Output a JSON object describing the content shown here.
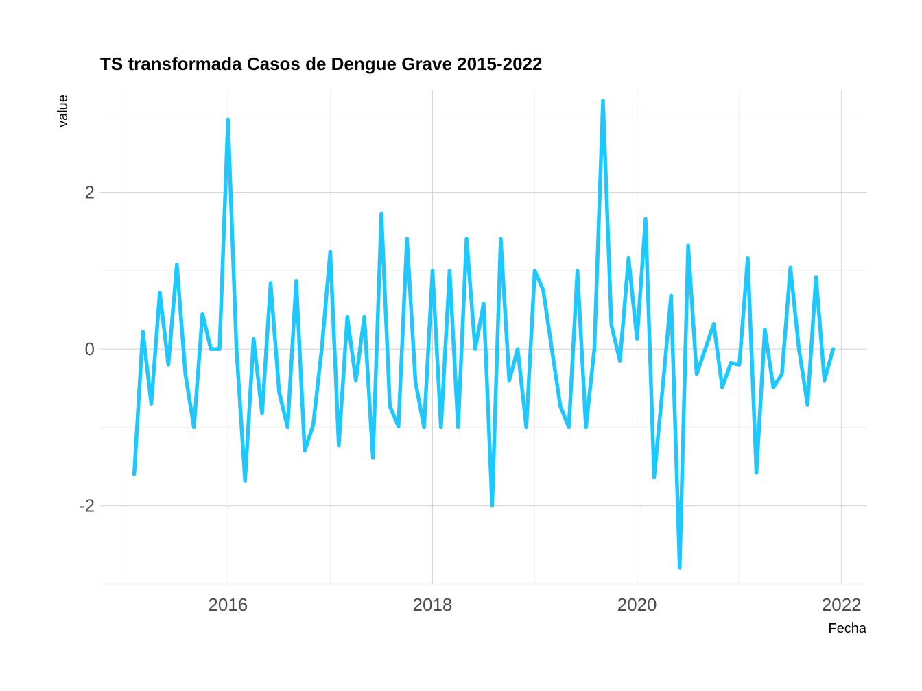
{
  "chart_data": {
    "type": "line",
    "title": "TS transformada Casos de Dengue Grave 2015-2022",
    "xlabel": "Fecha",
    "ylabel": "value",
    "x_ticks": [
      "2016",
      "2018",
      "2020",
      "2022"
    ],
    "y_ticks": [
      "-2",
      "0",
      "2"
    ],
    "xlim": [
      2014.75,
      2022.25
    ],
    "ylim": [
      -3,
      3.3
    ],
    "grid": true,
    "legend": "none",
    "line_color": "#1EC8FF",
    "series": [
      {
        "x": [
          2015.083,
          2015.167,
          2015.25,
          2015.333,
          2015.417,
          2015.5,
          2015.583,
          2015.667,
          2015.75,
          2015.833,
          2015.917,
          2016.0,
          2016.083,
          2016.167,
          2016.25,
          2016.333,
          2016.417,
          2016.5,
          2016.583,
          2016.667,
          2016.75,
          2016.833,
          2016.917,
          2017.0,
          2017.083,
          2017.167,
          2017.25,
          2017.333,
          2017.417,
          2017.5,
          2017.583,
          2017.667,
          2017.75,
          2017.833,
          2017.917,
          2018.0,
          2018.083,
          2018.167,
          2018.25,
          2018.333,
          2018.417,
          2018.5,
          2018.583,
          2018.667,
          2018.75,
          2018.833,
          2018.917,
          2019.0,
          2019.083,
          2019.167,
          2019.25,
          2019.333,
          2019.417,
          2019.5,
          2019.583,
          2019.667,
          2019.75,
          2019.833,
          2019.917,
          2020.0,
          2020.083,
          2020.167,
          2020.25,
          2020.333,
          2020.417,
          2020.5,
          2020.583,
          2020.667,
          2020.75,
          2020.833,
          2020.917,
          2021.0,
          2021.083,
          2021.167,
          2021.25,
          2021.333,
          2021.417,
          2021.5,
          2021.583,
          2021.667,
          2021.75,
          2021.833,
          2021.917
        ],
        "values": [
          -1.6,
          0.22,
          -0.7,
          0.72,
          -0.2,
          1.08,
          -0.32,
          -1.0,
          0.45,
          0.0,
          0.0,
          2.93,
          0.0,
          -1.68,
          0.13,
          -0.82,
          0.84,
          -0.55,
          -1.0,
          0.87,
          -1.3,
          -0.97,
          0.0,
          1.24,
          -1.23,
          0.41,
          -0.4,
          0.41,
          -1.39,
          1.73,
          -0.73,
          -0.99,
          1.41,
          -0.42,
          -1.0,
          1.0,
          -1.0,
          1.0,
          -1.0,
          1.41,
          0.0,
          0.58,
          -2.0,
          1.41,
          -0.4,
          0.0,
          -1.0,
          1.0,
          0.75,
          0.0,
          -0.73,
          -1.0,
          1.0,
          -1.0,
          0.0,
          3.17,
          0.3,
          -0.15,
          1.16,
          0.13,
          1.66,
          -1.64,
          -0.5,
          0.68,
          -2.79,
          1.32,
          -0.32,
          0.0,
          0.32,
          -0.49,
          -0.18,
          -0.2,
          1.16,
          -1.58,
          0.25,
          -0.49,
          -0.32,
          1.04,
          0.0,
          -0.71,
          0.92,
          -0.4,
          0.0
        ]
      }
    ]
  }
}
